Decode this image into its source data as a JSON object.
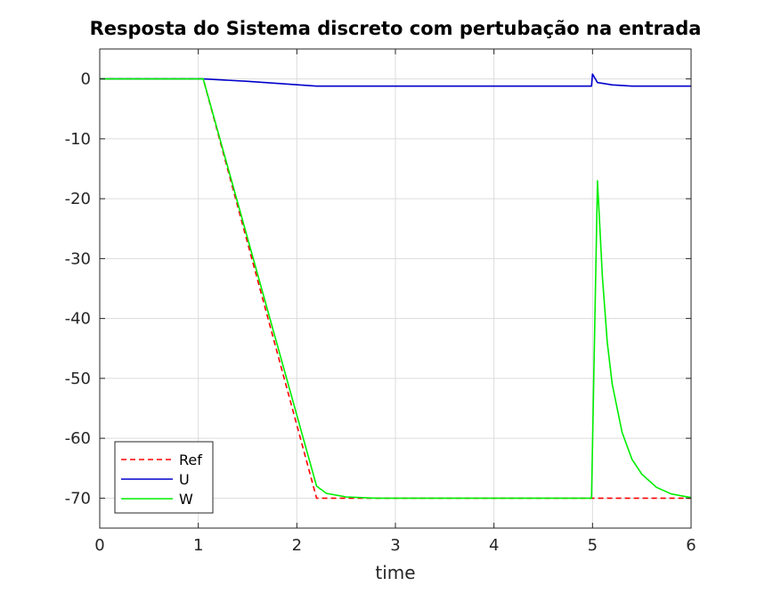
{
  "chart_data": {
    "type": "line",
    "title": "Resposta do Sistema discreto com pertubação na entrada",
    "xlabel": "time",
    "ylabel": "",
    "xlim": [
      0,
      6
    ],
    "ylim": [
      -75,
      5
    ],
    "xticks": [
      0,
      1,
      2,
      3,
      4,
      5,
      6
    ],
    "yticks": [
      0,
      -10,
      -20,
      -30,
      -40,
      -50,
      -60,
      -70
    ],
    "grid": true,
    "legend_position": "bottom-left",
    "series": [
      {
        "name": "Ref",
        "color": "#ff0000",
        "style": "dashed",
        "points": [
          [
            0,
            0
          ],
          [
            1.05,
            0
          ],
          [
            2.2,
            -70
          ],
          [
            6,
            -70
          ]
        ]
      },
      {
        "name": "U",
        "color": "#0000cc",
        "style": "solid",
        "points": [
          [
            0,
            0
          ],
          [
            1.05,
            0
          ],
          [
            1.5,
            -0.4
          ],
          [
            2.2,
            -1.2
          ],
          [
            4.99,
            -1.2
          ],
          [
            5.0,
            0.8
          ],
          [
            5.05,
            -0.6
          ],
          [
            5.2,
            -1.0
          ],
          [
            5.4,
            -1.2
          ],
          [
            6,
            -1.2
          ]
        ]
      },
      {
        "name": "W",
        "color": "#00ee00",
        "style": "solid",
        "points": [
          [
            0,
            0
          ],
          [
            1.05,
            0
          ],
          [
            2.2,
            -68
          ],
          [
            2.3,
            -69.2
          ],
          [
            2.5,
            -69.8
          ],
          [
            2.8,
            -70
          ],
          [
            4.99,
            -70
          ],
          [
            5.05,
            -17
          ],
          [
            5.1,
            -33
          ],
          [
            5.15,
            -44
          ],
          [
            5.2,
            -51
          ],
          [
            5.3,
            -59
          ],
          [
            5.4,
            -63.5
          ],
          [
            5.5,
            -66
          ],
          [
            5.65,
            -68.2
          ],
          [
            5.8,
            -69.3
          ],
          [
            6,
            -69.9
          ]
        ]
      }
    ]
  }
}
